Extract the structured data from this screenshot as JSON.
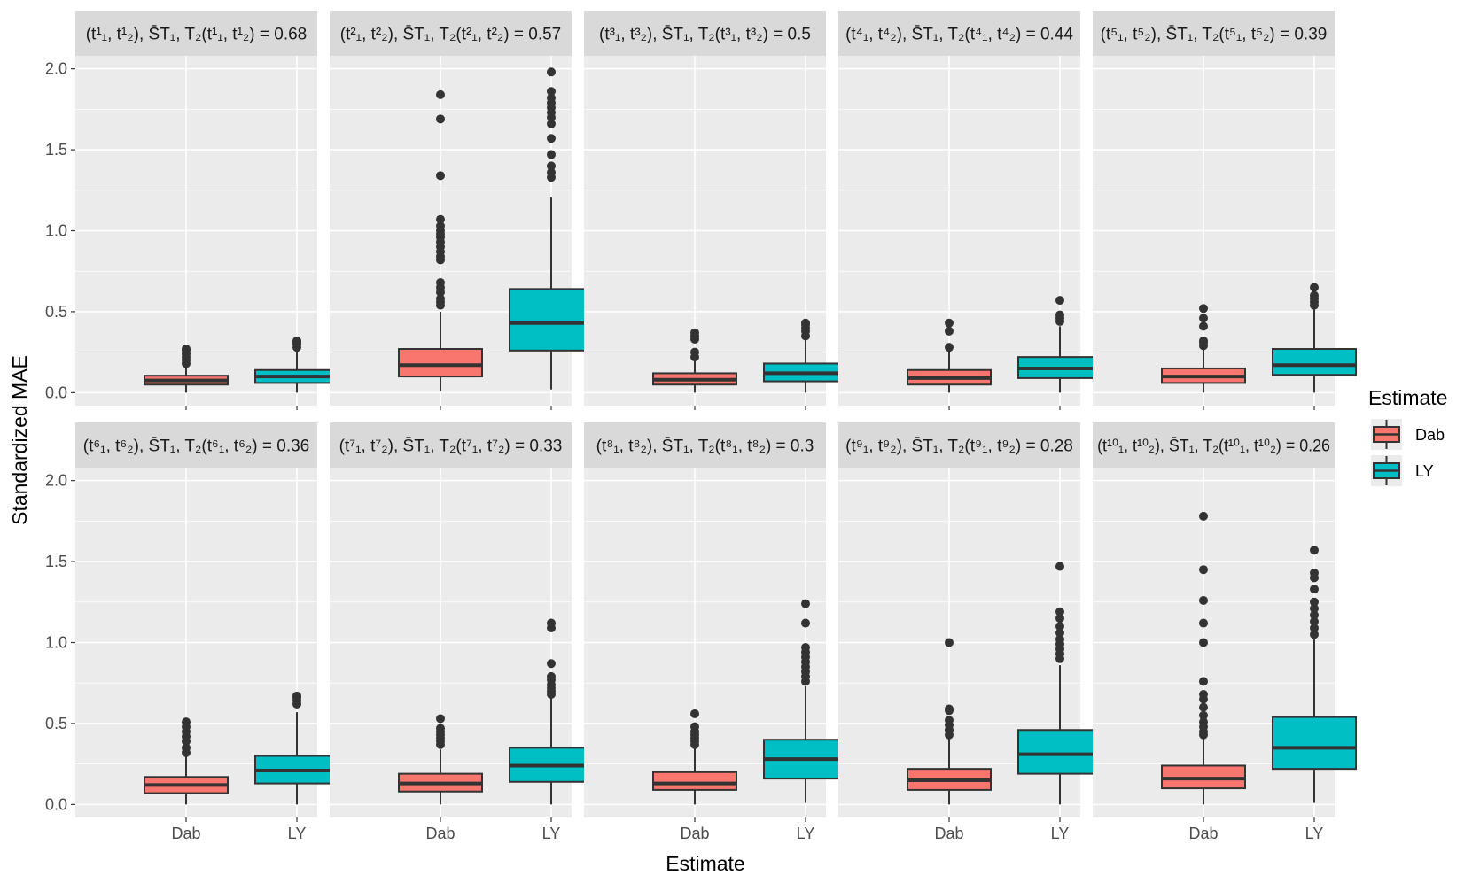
{
  "chart_data": {
    "type": "boxplot",
    "xlabel": "Estimate",
    "ylabel": "Standardized MAE",
    "ylim": [
      -0.08,
      2.08
    ],
    "yticks": [
      "0.0",
      "0.5",
      "1.0",
      "1.5",
      "2.0"
    ],
    "categories": [
      "Dab",
      "LY"
    ],
    "legend": {
      "title": "Estimate",
      "position": "right",
      "entries": [
        {
          "label": "Dab",
          "color": "#F8766D"
        },
        {
          "label": "LY",
          "color": "#00BFC4"
        }
      ]
    },
    "colors": {
      "Dab": "#F8766D",
      "LY": "#00BFC4",
      "panel_bg": "#EBEBEB",
      "strip_bg": "#D9D9D9"
    },
    "panels": [
      {
        "index": "1",
        "value": "0.68",
        "strip": {
          "pair": "(t¹₁, t¹₂),",
          "stat": "S̄T₁, T₂(t¹₁, t¹₂) = 0.68"
        },
        "boxes": [
          {
            "cat": "Dab",
            "lower_whisker": 0.0,
            "q1": 0.05,
            "median": 0.075,
            "q3": 0.105,
            "upper_whisker": 0.17,
            "outliers": [
              0.18,
              0.2,
              0.22,
              0.24,
              0.26,
              0.27
            ]
          },
          {
            "cat": "LY",
            "lower_whisker": 0.0,
            "q1": 0.06,
            "median": 0.1,
            "q3": 0.14,
            "upper_whisker": 0.27,
            "outliers": [
              0.28,
              0.3,
              0.31,
              0.32
            ]
          }
        ]
      },
      {
        "index": "2",
        "value": "0.57",
        "strip": {
          "pair": "(t²₁, t²₂),",
          "stat": "S̄T₁, T₂(t²₁, t²₂) = 0.57"
        },
        "boxes": [
          {
            "cat": "Dab",
            "lower_whisker": 0.01,
            "q1": 0.1,
            "median": 0.17,
            "q3": 0.27,
            "upper_whisker": 0.5,
            "outliers": [
              0.54,
              0.56,
              0.58,
              0.62,
              0.65,
              0.68,
              0.82,
              0.84,
              0.87,
              0.9,
              0.93,
              0.96,
              0.98,
              1.0,
              1.03,
              1.07,
              1.34,
              1.69,
              1.84
            ]
          },
          {
            "cat": "LY",
            "lower_whisker": 0.02,
            "q1": 0.26,
            "median": 0.43,
            "q3": 0.64,
            "upper_whisker": 1.21,
            "outliers": [
              1.33,
              1.36,
              1.4,
              1.47,
              1.57,
              1.66,
              1.7,
              1.73,
              1.76,
              1.79,
              1.82,
              1.86,
              1.98
            ]
          }
        ]
      },
      {
        "index": "3",
        "value": "0.5",
        "strip": {
          "pair": "(t³₁, t³₂),",
          "stat": "S̄T₁, T₂(t³₁, t³₂) = 0.5"
        },
        "boxes": [
          {
            "cat": "Dab",
            "lower_whisker": 0.0,
            "q1": 0.05,
            "median": 0.08,
            "q3": 0.12,
            "upper_whisker": 0.2,
            "outliers": [
              0.22,
              0.25,
              0.33,
              0.35,
              0.37
            ]
          },
          {
            "cat": "LY",
            "lower_whisker": 0.0,
            "q1": 0.07,
            "median": 0.12,
            "q3": 0.18,
            "upper_whisker": 0.33,
            "outliers": [
              0.35,
              0.38,
              0.4,
              0.42,
              0.43
            ]
          }
        ]
      },
      {
        "index": "4",
        "value": "0.44",
        "strip": {
          "pair": "(t⁴₁, t⁴₂),",
          "stat": "S̄T₁, T₂(t⁴₁, t⁴₂) = 0.44"
        },
        "boxes": [
          {
            "cat": "Dab",
            "lower_whisker": 0.0,
            "q1": 0.05,
            "median": 0.09,
            "q3": 0.14,
            "upper_whisker": 0.25,
            "outliers": [
              0.28,
              0.38,
              0.43
            ]
          },
          {
            "cat": "LY",
            "lower_whisker": 0.0,
            "q1": 0.09,
            "median": 0.15,
            "q3": 0.22,
            "upper_whisker": 0.41,
            "outliers": [
              0.44,
              0.46,
              0.48,
              0.57
            ]
          }
        ]
      },
      {
        "index": "5",
        "value": "0.39",
        "strip": {
          "pair": "(t⁵₁, t⁵₂),",
          "stat": "S̄T₁, T₂(t⁵₁, t⁵₂) = 0.39"
        },
        "boxes": [
          {
            "cat": "Dab",
            "lower_whisker": 0.0,
            "q1": 0.06,
            "median": 0.1,
            "q3": 0.15,
            "upper_whisker": 0.27,
            "outliers": [
              0.29,
              0.31,
              0.32,
              0.41,
              0.46,
              0.52
            ]
          },
          {
            "cat": "LY",
            "lower_whisker": 0.0,
            "q1": 0.11,
            "median": 0.17,
            "q3": 0.27,
            "upper_whisker": 0.52,
            "outliers": [
              0.54,
              0.56,
              0.58,
              0.6,
              0.65
            ]
          }
        ]
      },
      {
        "index": "6",
        "value": "0.36",
        "strip": {
          "pair": "(t⁶₁, t⁶₂),",
          "stat": "S̄T₁, T₂(t⁶₁, t⁶₂) = 0.36"
        },
        "boxes": [
          {
            "cat": "Dab",
            "lower_whisker": 0.0,
            "q1": 0.07,
            "median": 0.12,
            "q3": 0.17,
            "upper_whisker": 0.31,
            "outliers": [
              0.32,
              0.35,
              0.39,
              0.42,
              0.45,
              0.48,
              0.51
            ]
          },
          {
            "cat": "LY",
            "lower_whisker": 0.0,
            "q1": 0.13,
            "median": 0.21,
            "q3": 0.3,
            "upper_whisker": 0.57,
            "outliers": [
              0.62,
              0.64,
              0.66,
              0.67
            ]
          }
        ]
      },
      {
        "index": "7",
        "value": "0.33",
        "strip": {
          "pair": "(t⁷₁, t⁷₂),",
          "stat": "S̄T₁, T₂(t⁷₁, t⁷₂) = 0.33"
        },
        "boxes": [
          {
            "cat": "Dab",
            "lower_whisker": 0.0,
            "q1": 0.08,
            "median": 0.13,
            "q3": 0.19,
            "upper_whisker": 0.34,
            "outliers": [
              0.37,
              0.39,
              0.41,
              0.43,
              0.45,
              0.47,
              0.53
            ]
          },
          {
            "cat": "LY",
            "lower_whisker": 0.0,
            "q1": 0.14,
            "median": 0.24,
            "q3": 0.35,
            "upper_whisker": 0.66,
            "outliers": [
              0.68,
              0.7,
              0.72,
              0.74,
              0.77,
              0.79,
              0.87,
              1.09,
              1.12
            ]
          }
        ]
      },
      {
        "index": "8",
        "value": "0.3",
        "strip": {
          "pair": "(t⁸₁, t⁸₂),",
          "stat": "S̄T₁, T₂(t⁸₁, t⁸₂) = 0.3"
        },
        "boxes": [
          {
            "cat": "Dab",
            "lower_whisker": 0.0,
            "q1": 0.09,
            "median": 0.13,
            "q3": 0.2,
            "upper_whisker": 0.35,
            "outliers": [
              0.37,
              0.39,
              0.41,
              0.43,
              0.45,
              0.48,
              0.56
            ]
          },
          {
            "cat": "LY",
            "lower_whisker": 0.01,
            "q1": 0.16,
            "median": 0.28,
            "q3": 0.4,
            "upper_whisker": 0.73,
            "outliers": [
              0.76,
              0.79,
              0.82,
              0.85,
              0.88,
              0.91,
              0.94,
              0.97,
              1.12,
              1.24
            ]
          }
        ]
      },
      {
        "index": "9",
        "value": "0.28",
        "strip": {
          "pair": "(t⁹₁, t⁹₂),",
          "stat": "S̄T₁, T₂(t⁹₁, t⁹₂) = 0.28"
        },
        "boxes": [
          {
            "cat": "Dab",
            "lower_whisker": 0.0,
            "q1": 0.09,
            "median": 0.15,
            "q3": 0.22,
            "upper_whisker": 0.41,
            "outliers": [
              0.43,
              0.46,
              0.49,
              0.52,
              0.58,
              0.59,
              1.0
            ]
          },
          {
            "cat": "LY",
            "lower_whisker": 0.0,
            "q1": 0.19,
            "median": 0.31,
            "q3": 0.46,
            "upper_whisker": 0.86,
            "outliers": [
              0.9,
              0.93,
              0.96,
              0.99,
              1.02,
              1.06,
              1.1,
              1.15,
              1.19,
              1.47
            ]
          }
        ]
      },
      {
        "index": "10",
        "value": "0.26",
        "strip": {
          "pair": "(t¹⁰₁, t¹⁰₂),",
          "stat": "S̄T₁, T₂(t¹⁰₁, t¹⁰₂) = 0.26"
        },
        "boxes": [
          {
            "cat": "Dab",
            "lower_whisker": 0.0,
            "q1": 0.1,
            "median": 0.16,
            "q3": 0.24,
            "upper_whisker": 0.42,
            "outliers": [
              0.43,
              0.45,
              0.48,
              0.51,
              0.55,
              0.6,
              0.65,
              0.68,
              0.76,
              1.0,
              1.12,
              1.26,
              1.45,
              1.78
            ]
          },
          {
            "cat": "LY",
            "lower_whisker": 0.01,
            "q1": 0.22,
            "median": 0.35,
            "q3": 0.54,
            "upper_whisker": 1.02,
            "outliers": [
              1.05,
              1.09,
              1.13,
              1.17,
              1.21,
              1.25,
              1.33,
              1.4,
              1.43,
              1.57
            ]
          }
        ]
      }
    ]
  }
}
